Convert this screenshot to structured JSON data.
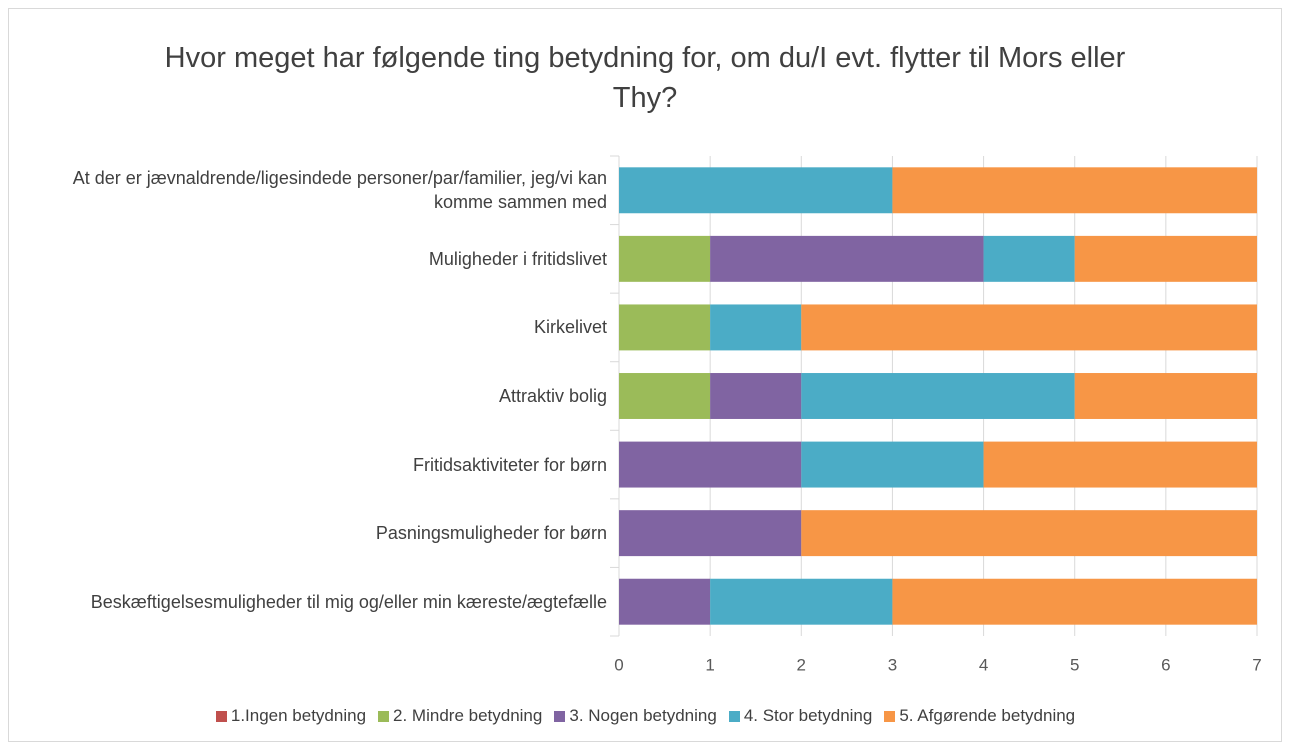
{
  "chart_data": {
    "type": "stacked-bar-horizontal",
    "title": "Hvor meget har følgende ting betydning for, om du/I evt. flytter til Mors eller Thy?",
    "categories": [
      "At der er jævnaldrende/ligesindede personer/par/familier, jeg/vi kan komme sammen med",
      "Muligheder i fritidslivet",
      "Kirkelivet",
      "Attraktiv bolig",
      "Fritidsaktiviteter for børn",
      "Pasningsmuligheder for børn",
      "Beskæftigelsesmuligheder til mig og/eller min kæreste/ægtefælle"
    ],
    "series": [
      {
        "name": "1.Ingen betydning",
        "color": "#c0504d",
        "values": [
          0,
          0,
          0,
          0,
          0,
          0,
          0
        ]
      },
      {
        "name": "2. Mindre betydning",
        "color": "#9bbb59",
        "values": [
          0,
          1,
          1,
          1,
          0,
          0,
          0
        ]
      },
      {
        "name": "3. Nogen betydning",
        "color": "#8064a2",
        "values": [
          0,
          3,
          0,
          1,
          2,
          2,
          1
        ]
      },
      {
        "name": "4. Stor betydning",
        "color": "#4bacc6",
        "values": [
          3,
          1,
          1,
          3,
          2,
          0,
          2
        ]
      },
      {
        "name": "5. Afgørende betydning",
        "color": "#f79646",
        "values": [
          4,
          2,
          5,
          2,
          3,
          5,
          4
        ]
      }
    ],
    "xlim": [
      0,
      7
    ],
    "xticks": [
      0,
      1,
      2,
      3,
      4,
      5,
      6,
      7
    ],
    "grid": true,
    "legend": "bottom"
  }
}
